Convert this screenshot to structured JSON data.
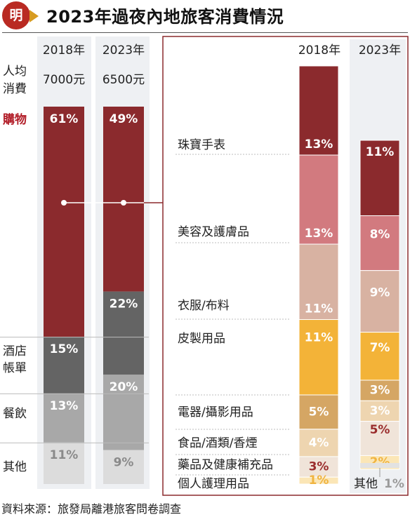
{
  "header": {
    "logo_text": "明",
    "title": "2023年過夜內地旅客消費情況"
  },
  "source": "資料來源：旅發局離港旅客問卷調查",
  "colors": {
    "shopping": "#8b2a2d",
    "hotel": "#646464",
    "dining": "#a8a8a8",
    "others": "#dcdcdc",
    "jewellery": "#8b2a2d",
    "cosmetics": "#d27a7f",
    "clothing": "#d8b2a2",
    "leather": "#f3b338",
    "electronics": "#d5a664",
    "food": "#eed5b0",
    "medicine": "#f0e4d9",
    "personal_care": "#fbe6b6",
    "other_small": "#e2e2e2",
    "shopping_label": "#b11b26",
    "panel_border": "#8b2a2d",
    "column_bg": "#eef0f3"
  },
  "chart_data": [
    {
      "type": "bar",
      "subtype": "stacked-100",
      "categories": [
        "2018年",
        "2023年"
      ],
      "row_label": "人均消費",
      "per_capita": [
        "7000元",
        "6500元"
      ],
      "series": [
        {
          "name": "購物",
          "values": [
            61,
            49
          ]
        },
        {
          "name": "酒店帳單",
          "values": [
            15,
            22
          ]
        },
        {
          "name": "餐飲",
          "values": [
            13,
            20
          ]
        },
        {
          "name": "其他",
          "values": [
            11,
            9
          ]
        }
      ]
    },
    {
      "type": "bar",
      "subtype": "stacked",
      "categories": [
        "2018年",
        "2023年"
      ],
      "series": [
        {
          "name": "珠寶手表",
          "values": [
            13,
            11
          ]
        },
        {
          "name": "美容及護膚品",
          "values": [
            13,
            8
          ]
        },
        {
          "name": "衣服/布料",
          "values": [
            11,
            9
          ]
        },
        {
          "name": "皮製用品",
          "values": [
            11,
            7
          ]
        },
        {
          "name": "電器/攝影用品",
          "values": [
            5,
            3
          ]
        },
        {
          "name": "食品/酒類/香煙",
          "values": [
            4,
            3
          ]
        },
        {
          "name": "藥品及健康補充品",
          "values": [
            3,
            5
          ]
        },
        {
          "name": "個人護理用品",
          "values": [
            1,
            2
          ]
        },
        {
          "name": "其他",
          "values": [
            null,
            1
          ]
        }
      ]
    }
  ]
}
